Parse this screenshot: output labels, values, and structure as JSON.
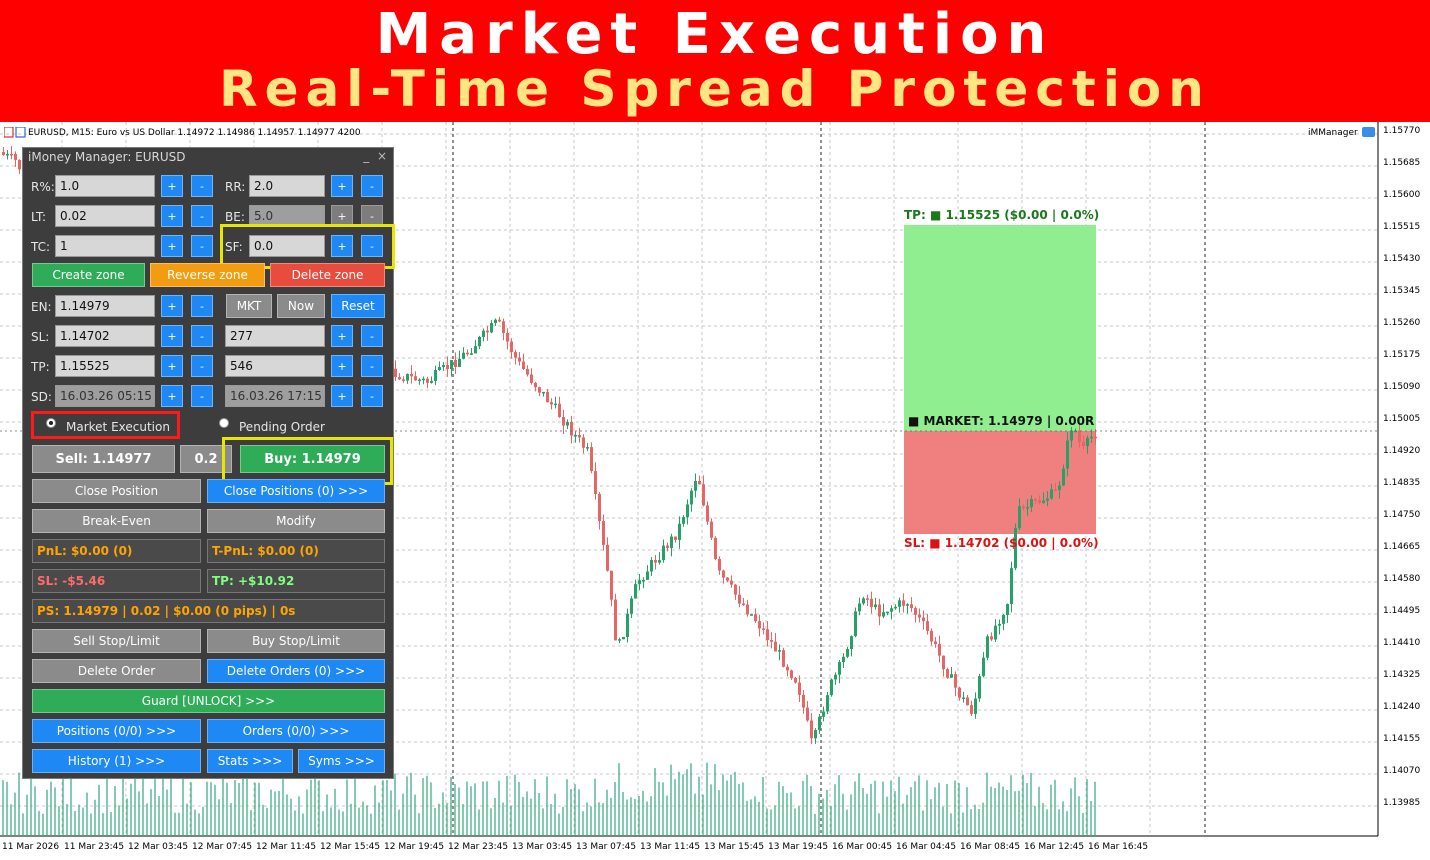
{
  "banner": {
    "title": "Market Execution",
    "subtitle": "Real-Time Spread Protection"
  },
  "chart_header": {
    "info": "EURUSD, M15:  Euro vs US Dollar  1.14972 1.14986 1.14957 1.14977  4200",
    "indicator": "iMManager",
    "price_ticks": [
      "1.15770",
      "1.15685",
      "1.15600",
      "1.15515",
      "1.15430",
      "1.15345",
      "1.15260",
      "1.15175",
      "1.15090",
      "1.15005",
      "1.14920",
      "1.14835",
      "1.14750",
      "1.14665",
      "1.14580",
      "1.14495",
      "1.14410",
      "1.14325",
      "1.14240",
      "1.14155",
      "1.14070",
      "1.13985"
    ],
    "time_ticks": [
      "11 Mar 2026",
      "11 Mar 23:45",
      "12 Mar 03:45",
      "12 Mar 07:45",
      "12 Mar 11:45",
      "12 Mar 15:45",
      "12 Mar 19:45",
      "12 Mar 23:45",
      "13 Mar 03:45",
      "13 Mar 07:45",
      "13 Mar 11:45",
      "13 Mar 15:45",
      "13 Mar 19:45",
      "16 Mar 00:45",
      "16 Mar 04:45",
      "16 Mar 08:45",
      "16 Mar 12:45",
      "16 Mar 16:45"
    ]
  },
  "zones": {
    "tp_label": "TP: ■ 1.15525 ($0.00 | 0.0%)",
    "market_label": "■ MARKET: 1.14979 | 0.00R",
    "sl_label": "SL: ■ 1.14702 ($0.00 | 0.0%)",
    "tp_color": "#90ee90",
    "sl_color": "#f08080"
  },
  "panel": {
    "title": "iMoney Manager: EURUSD",
    "min": "_",
    "close": "×",
    "plus": "+",
    "minus": "-",
    "rows": {
      "r_label": "R%:",
      "r_value": "1.0",
      "rr_label": "RR:",
      "rr_value": "2.0",
      "lt_label": "LT:",
      "lt_value": "0.02",
      "be_label": "BE:",
      "be_value": "5.0",
      "tc_label": "TC:",
      "tc_value": "1",
      "sf_label": "SF:",
      "sf_value": "0.0",
      "en_label": "EN:",
      "en_value": "1.14979",
      "sl_label": "SL:",
      "sl_value": "1.14702",
      "sl_points": "277",
      "tp_label": "TP:",
      "tp_value": "1.15525",
      "tp_points": "546",
      "sd_label": "SD:",
      "sd_value": "16.03.26 05:15",
      "sd_value2": "16.03.26 17:15"
    },
    "create_zone": "Create zone",
    "reverse_zone": "Reverse zone",
    "delete_zone": "Delete zone",
    "mkt": "MKT",
    "now": "Now",
    "reset": "Reset",
    "market_execution": "Market Execution",
    "pending_order": "Pending Order",
    "sell": "Sell: 1.14977",
    "lot": "0.2",
    "buy": "Buy: 1.14979",
    "close_position": "Close Position",
    "close_positions": "Close Positions (0) >>>",
    "break_even": "Break-Even",
    "modify": "Modify",
    "pnl": "PnL: $0.00 (0)",
    "tpnl": "T-PnL: $0.00 (0)",
    "sl_money": "SL: -$5.46",
    "tp_money": "TP: +$10.92",
    "ps": "PS: 1.14979 | 0.02 | $0.00 (0 pips) | 0s",
    "sell_stop": "Sell Stop/Limit",
    "buy_stop": "Buy Stop/Limit",
    "delete_order": "Delete Order",
    "delete_orders": "Delete Orders (0) >>>",
    "guard": "Guard [UNLOCK] >>>",
    "positions": "Positions (0/0) >>>",
    "orders": "Orders (0/0) >>>",
    "history": "History (1) >>>",
    "stats": "Stats >>>",
    "syms": "Syms >>>"
  }
}
